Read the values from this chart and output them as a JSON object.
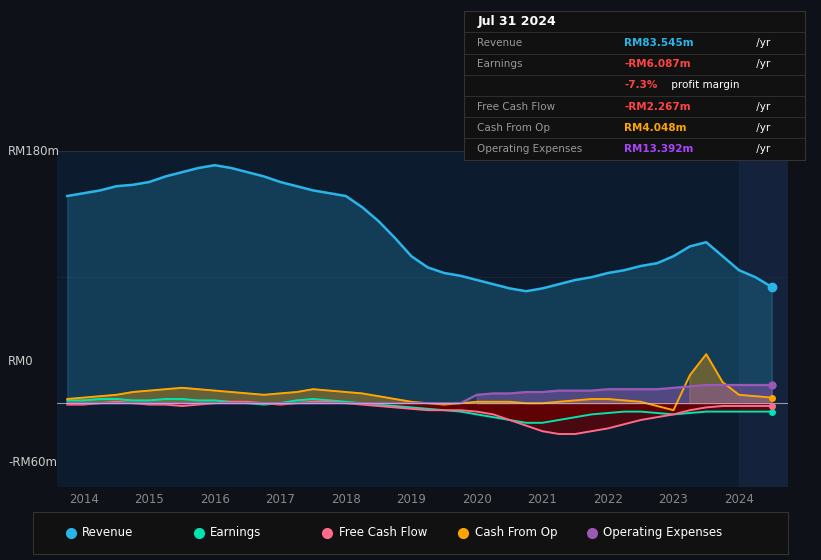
{
  "bg_color": "#0e1117",
  "plot_bg_color": "#0d1b2e",
  "x_years": [
    2013.75,
    2014.0,
    2014.25,
    2014.5,
    2014.75,
    2015.0,
    2015.25,
    2015.5,
    2015.75,
    2016.0,
    2016.25,
    2016.5,
    2016.75,
    2017.0,
    2017.25,
    2017.5,
    2017.75,
    2018.0,
    2018.25,
    2018.5,
    2018.75,
    2019.0,
    2019.25,
    2019.5,
    2019.75,
    2020.0,
    2020.25,
    2020.5,
    2020.75,
    2021.0,
    2021.25,
    2021.5,
    2021.75,
    2022.0,
    2022.25,
    2022.5,
    2022.75,
    2023.0,
    2023.25,
    2023.5,
    2023.75,
    2024.0,
    2024.25,
    2024.5
  ],
  "revenue": [
    148,
    150,
    152,
    155,
    156,
    158,
    162,
    165,
    168,
    170,
    168,
    165,
    162,
    158,
    155,
    152,
    150,
    148,
    140,
    130,
    118,
    105,
    97,
    93,
    91,
    88,
    85,
    82,
    80,
    82,
    85,
    88,
    90,
    93,
    95,
    98,
    100,
    105,
    112,
    115,
    105,
    95,
    90,
    83
  ],
  "earnings": [
    2,
    2,
    3,
    3,
    2,
    2,
    3,
    3,
    2,
    2,
    1,
    0,
    -1,
    0,
    2,
    3,
    2,
    1,
    0,
    -1,
    -2,
    -3,
    -4,
    -5,
    -6,
    -8,
    -10,
    -12,
    -14,
    -14,
    -12,
    -10,
    -8,
    -7,
    -6,
    -6,
    -7,
    -8,
    -7,
    -6,
    -6,
    -6,
    -6,
    -6
  ],
  "free_cash_flow": [
    -1,
    -1,
    0,
    1,
    0,
    -1,
    -1,
    -2,
    -1,
    0,
    1,
    1,
    0,
    -1,
    0,
    1,
    1,
    0,
    -1,
    -2,
    -3,
    -4,
    -5,
    -5,
    -5,
    -6,
    -8,
    -12,
    -16,
    -20,
    -22,
    -22,
    -20,
    -18,
    -15,
    -12,
    -10,
    -8,
    -5,
    -3,
    -2,
    -2,
    -2,
    -2
  ],
  "cash_from_op": [
    3,
    4,
    5,
    6,
    8,
    9,
    10,
    11,
    10,
    9,
    8,
    7,
    6,
    7,
    8,
    10,
    9,
    8,
    7,
    5,
    3,
    1,
    0,
    -1,
    0,
    1,
    1,
    1,
    0,
    0,
    1,
    2,
    3,
    3,
    2,
    1,
    -2,
    -5,
    20,
    35,
    15,
    6,
    5,
    4
  ],
  "operating_expenses": [
    0,
    0,
    0,
    0,
    0,
    0,
    0,
    0,
    0,
    0,
    0,
    0,
    0,
    0,
    0,
    0,
    0,
    0,
    0,
    0,
    0,
    0,
    0,
    0,
    0,
    6,
    7,
    7,
    8,
    8,
    9,
    9,
    9,
    10,
    10,
    10,
    10,
    11,
    12,
    13,
    13,
    13,
    13,
    13
  ],
  "ylim": [
    -60,
    180
  ],
  "xlim": [
    2013.6,
    2024.75
  ],
  "xticks": [
    2014,
    2015,
    2016,
    2017,
    2018,
    2019,
    2020,
    2021,
    2022,
    2023,
    2024
  ],
  "colors": {
    "revenue": "#29b5e8",
    "earnings": "#00e5b0",
    "free_cash_flow": "#ff6b8a",
    "cash_from_op": "#ffa500",
    "operating_expenses": "#9b59b6"
  },
  "info_rows": [
    {
      "label": "Revenue",
      "value": "RM83.545m",
      "suffix": " /yr",
      "color": "#29b5e8",
      "type": "normal"
    },
    {
      "label": "Earnings",
      "value": "-RM6.087m",
      "suffix": " /yr",
      "color": "#ff4444",
      "type": "normal"
    },
    {
      "label": "",
      "value": "-7.3%",
      "suffix": " profit margin",
      "color": "#ff4444",
      "type": "margin"
    },
    {
      "label": "Free Cash Flow",
      "value": "-RM2.267m",
      "suffix": " /yr",
      "color": "#ff4444",
      "type": "normal"
    },
    {
      "label": "Cash From Op",
      "value": "RM4.048m",
      "suffix": " /yr",
      "color": "#ffa500",
      "type": "normal"
    },
    {
      "label": "Operating Expenses",
      "value": "RM13.392m",
      "suffix": " /yr",
      "color": "#aa44ff",
      "type": "normal"
    }
  ],
  "legend_items": [
    {
      "label": "Revenue",
      "color": "#29b5e8"
    },
    {
      "label": "Earnings",
      "color": "#00e5b0"
    },
    {
      "label": "Free Cash Flow",
      "color": "#ff6b8a"
    },
    {
      "label": "Cash From Op",
      "color": "#ffa500"
    },
    {
      "label": "Operating Expenses",
      "color": "#9b59b6"
    }
  ]
}
